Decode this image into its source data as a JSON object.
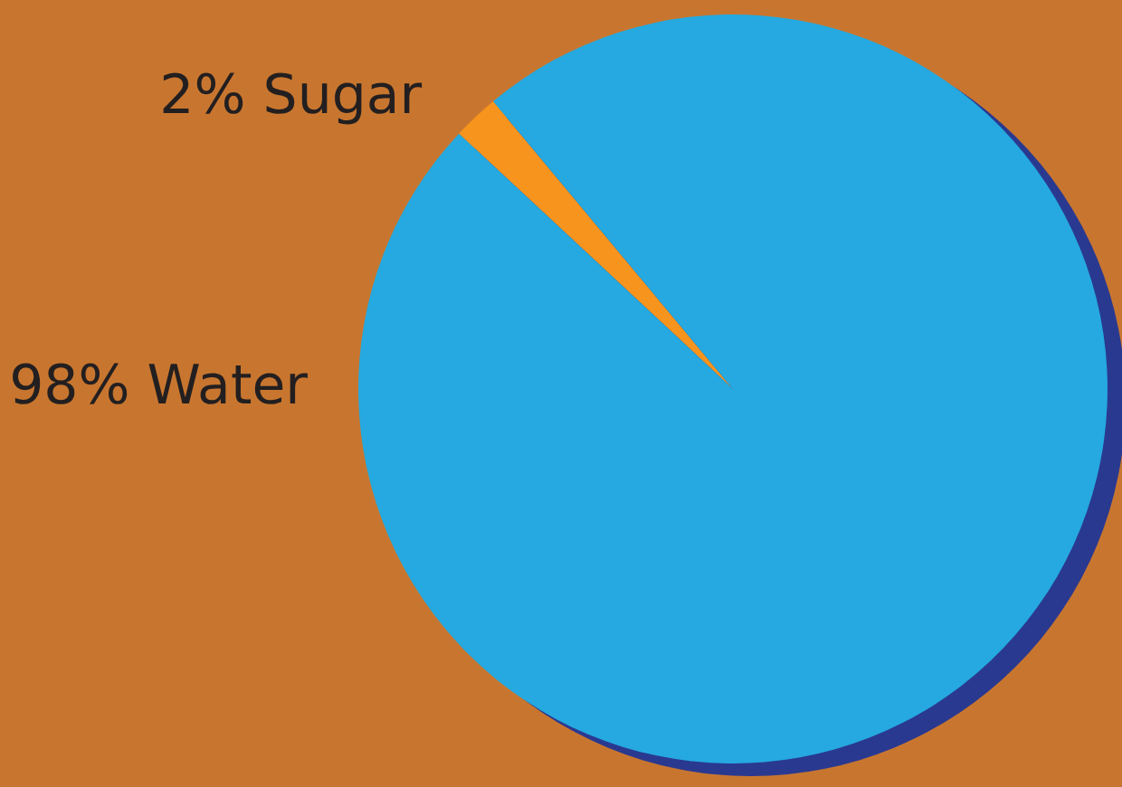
{
  "chart_data": {
    "type": "pie",
    "categories": [
      "Sugar",
      "Water"
    ],
    "values": [
      2,
      98
    ],
    "colors": [
      "#f7941d",
      "#25a9e0"
    ],
    "value_labels": [
      "2%",
      "98%"
    ],
    "legend": false
  }
}
